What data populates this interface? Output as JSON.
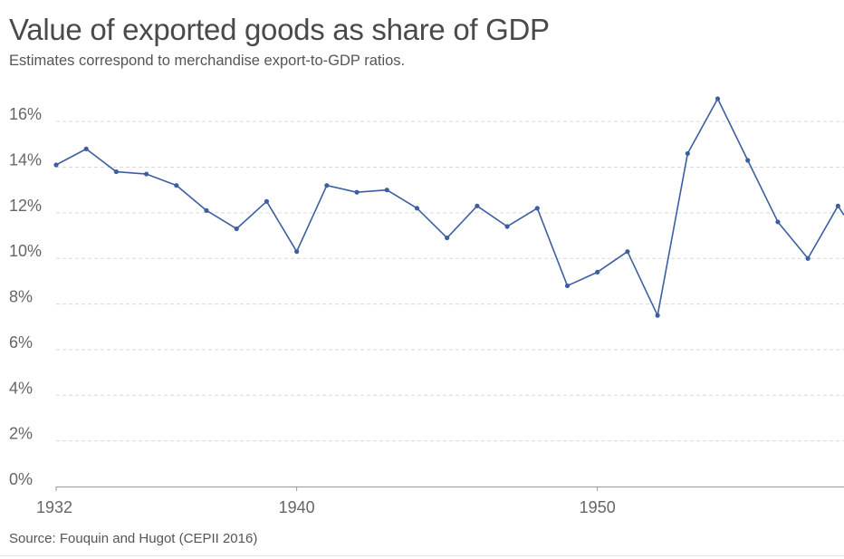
{
  "title": "Value of exported goods as share of GDP",
  "subtitle": "Estimates correspond to merchandise export-to-GDP ratios.",
  "source": "Source: Fouquin and Hugot (CEPII 2016)",
  "chart_data": {
    "type": "line",
    "title": "Value of exported goods as share of GDP",
    "xlabel": "",
    "ylabel": "",
    "xlim": [
      1932,
      1958.2
    ],
    "ylim": [
      0,
      17
    ],
    "grid": true,
    "y_ticks": [
      0,
      2,
      4,
      6,
      8,
      10,
      12,
      14,
      16
    ],
    "y_tick_labels": [
      "0%",
      "2%",
      "4%",
      "6%",
      "8%",
      "10%",
      "12%",
      "14%",
      "16%"
    ],
    "x_ticks": [
      1932,
      1940,
      1950
    ],
    "x_tick_labels": [
      "1932",
      "1940",
      "1950"
    ],
    "line_color": "#3c5fa0",
    "series": [
      {
        "name": "Export-to-GDP ratio",
        "x": [
          1932,
          1933,
          1934,
          1935,
          1936,
          1937,
          1938,
          1939,
          1940,
          1941,
          1942,
          1943,
          1944,
          1945,
          1946,
          1947,
          1948,
          1949,
          1950,
          1951,
          1952,
          1953,
          1954,
          1955,
          1956,
          1957,
          1958
        ],
        "values": [
          14.1,
          14.8,
          13.8,
          13.7,
          13.2,
          12.1,
          11.3,
          12.5,
          10.3,
          13.2,
          12.9,
          13.0,
          12.2,
          10.9,
          12.3,
          11.4,
          12.2,
          8.8,
          9.4,
          10.3,
          7.5,
          14.6,
          17.0,
          14.3,
          11.6,
          10.0,
          12.3
        ]
      }
    ]
  }
}
